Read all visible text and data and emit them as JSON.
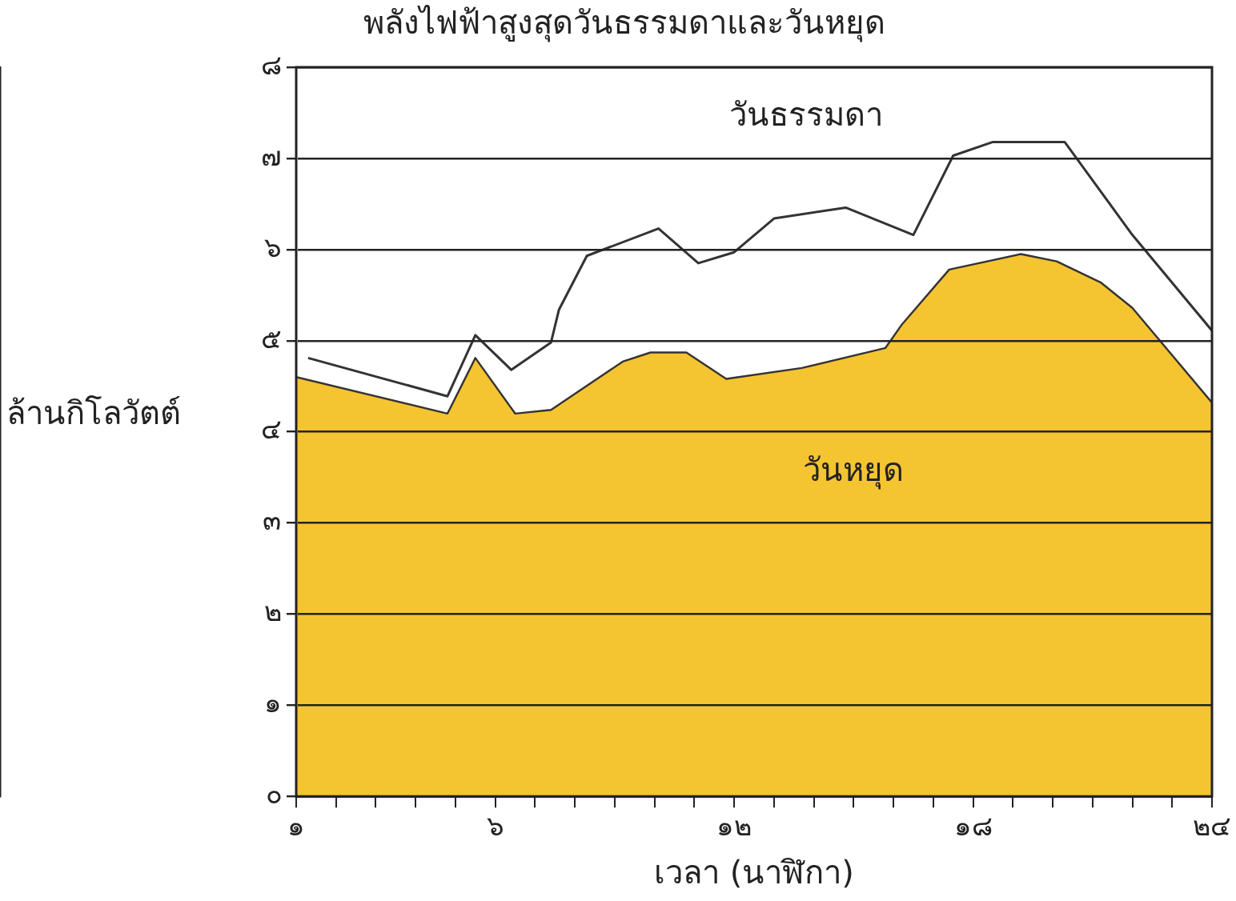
{
  "chart_data": {
    "type": "area",
    "title": "พลังไฟฟ้าสูงสุดวันธรรมดาและวันหยุด",
    "xlabel": "เวลา (นาฬิกา)",
    "ylabel": "ล้านกิโลวัตต์",
    "xlim": [
      1,
      24
    ],
    "xticks": [
      {
        "value": 1,
        "label": "๑"
      },
      {
        "value": 2,
        "label": null
      },
      {
        "value": 3,
        "label": null
      },
      {
        "value": 4,
        "label": null
      },
      {
        "value": 5,
        "label": null
      },
      {
        "value": 6,
        "label": "๖"
      },
      {
        "value": 7,
        "label": null
      },
      {
        "value": 8,
        "label": null
      },
      {
        "value": 9,
        "label": null
      },
      {
        "value": 10,
        "label": null
      },
      {
        "value": 11,
        "label": null
      },
      {
        "value": 12,
        "label": "๑๒"
      },
      {
        "value": 13,
        "label": null
      },
      {
        "value": 14,
        "label": null
      },
      {
        "value": 15,
        "label": null
      },
      {
        "value": 16,
        "label": null
      },
      {
        "value": 17,
        "label": null
      },
      {
        "value": 18,
        "label": "๑๘"
      },
      {
        "value": 19,
        "label": null
      },
      {
        "value": 20,
        "label": null
      },
      {
        "value": 21,
        "label": null
      },
      {
        "value": 22,
        "label": null
      },
      {
        "value": 23,
        "label": null
      },
      {
        "value": 24,
        "label": "๒๔"
      }
    ],
    "ylim": [
      0,
      8
    ],
    "yticks": [
      {
        "value": 0,
        "label": "๐"
      },
      {
        "value": 1,
        "label": "๑"
      },
      {
        "value": 2,
        "label": "๒"
      },
      {
        "value": 3,
        "label": "๓"
      },
      {
        "value": 4,
        "label": "๔"
      },
      {
        "value": 5,
        "label": "๕"
      },
      {
        "value": 6,
        "label": "๖"
      },
      {
        "value": 7,
        "label": "๗"
      },
      {
        "value": 8,
        "label": "๘"
      }
    ],
    "grid": "y",
    "legend": false,
    "series": [
      {
        "name": "วันหยุด",
        "type": "area",
        "color": "#f5c431",
        "x": [
          1,
          4.8,
          5.5,
          6.5,
          7.4,
          9.2,
          9.9,
          10.8,
          11.8,
          13.7,
          15.8,
          16.2,
          17.4,
          19.2,
          20.1,
          21.2,
          22,
          24
        ],
        "values": [
          4.6,
          4.2,
          4.81,
          4.2,
          4.24,
          4.77,
          4.87,
          4.87,
          4.58,
          4.7,
          4.92,
          5.17,
          5.78,
          5.95,
          5.87,
          5.64,
          5.36,
          4.32
        ]
      },
      {
        "name": "วันธรรมดา",
        "type": "line",
        "color": "#333333",
        "x": [
          1.3,
          4.8,
          5.5,
          6.4,
          7.4,
          7.6,
          8.3,
          10.1,
          11.1,
          12,
          13,
          14.8,
          16.5,
          17.5,
          18.5,
          20.3,
          22,
          24
        ],
        "values": [
          4.81,
          4.39,
          5.06,
          4.68,
          4.98,
          5.34,
          5.93,
          6.23,
          5.85,
          5.97,
          6.34,
          6.46,
          6.16,
          7.03,
          7.18,
          7.18,
          6.16,
          5.11
        ]
      }
    ]
  }
}
